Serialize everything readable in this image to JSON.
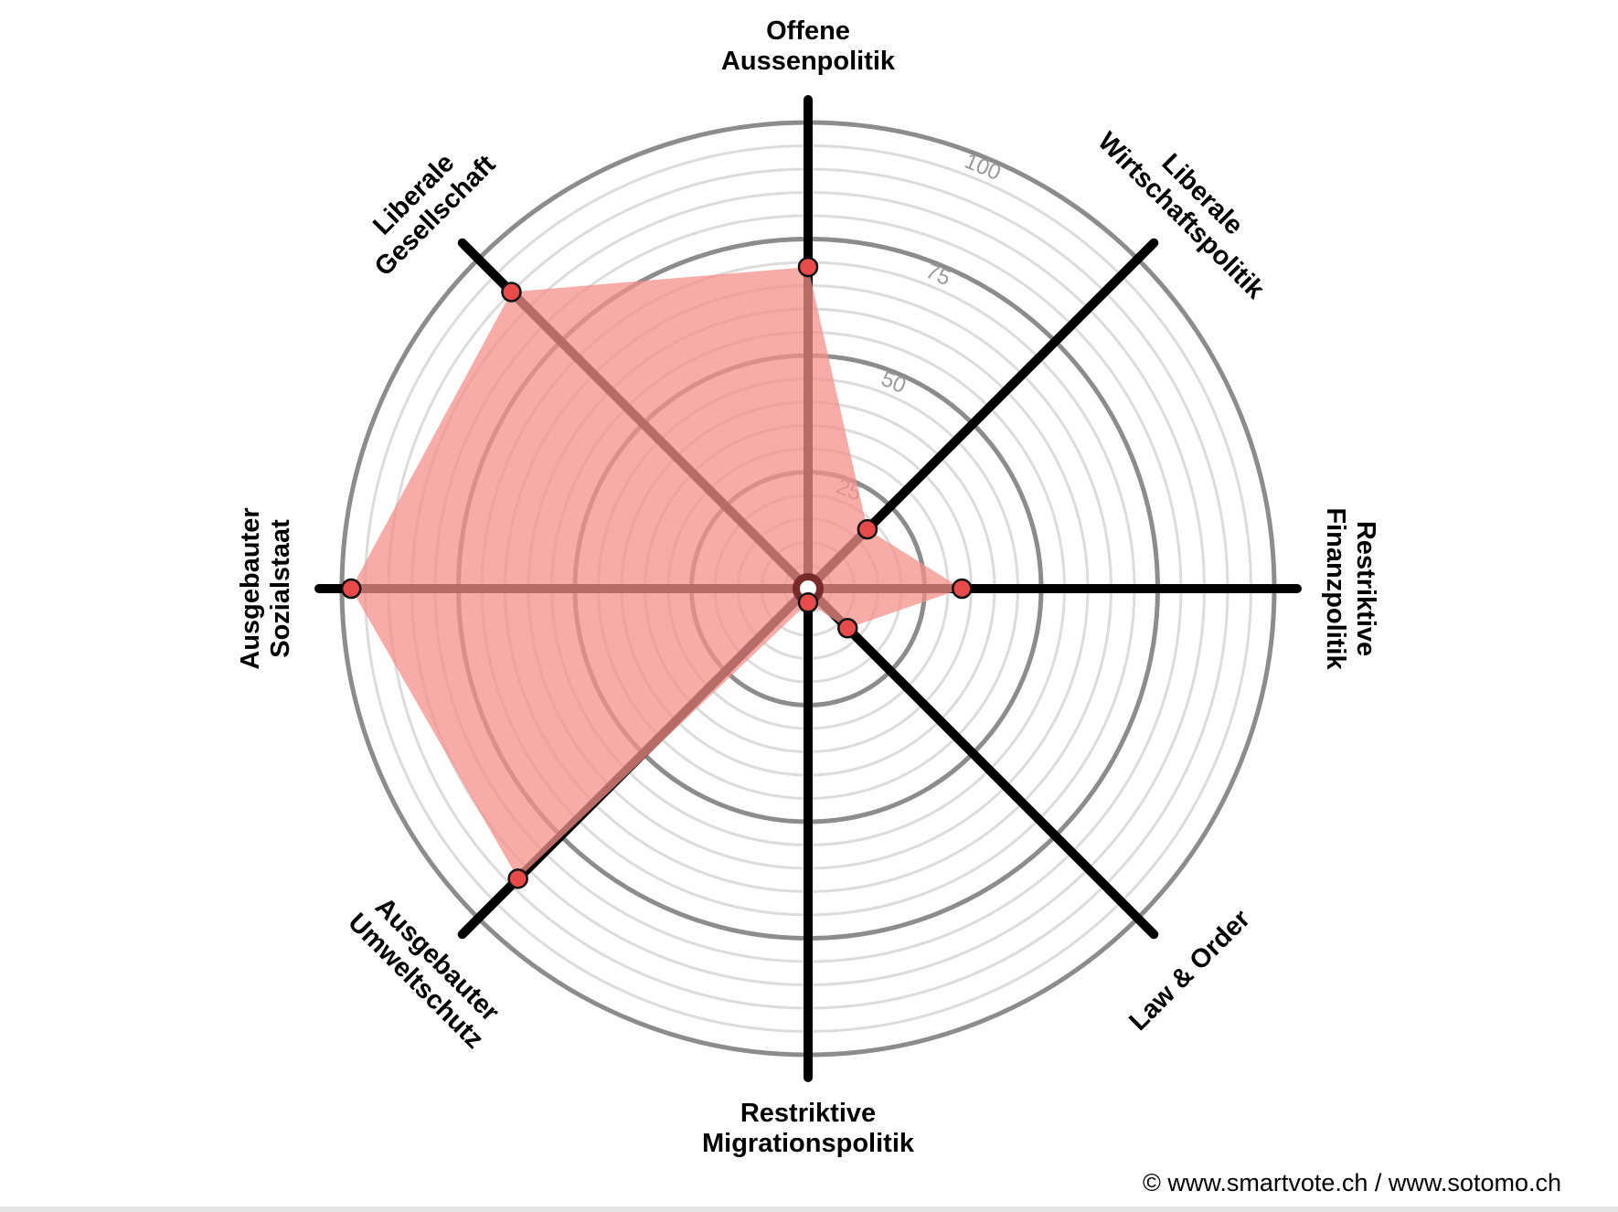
{
  "chart_data": {
    "type": "radar",
    "axes": [
      "Offene Aussenpolitik",
      "Liberale Wirtschaftspolitik",
      "Restriktive Finanzpolitik",
      "Law & Order",
      "Restriktive Migrationspolitik",
      "Ausgebauter Umweltschutz",
      "Ausgebauter Sozialstaat",
      "Liberale Gesellschaft"
    ],
    "axis_label_lines": [
      [
        "Offene",
        "Aussenpolitik"
      ],
      [
        "Liberale",
        "Wirtschaftspolitik"
      ],
      [
        "Restriktive",
        "Finanzpolitik"
      ],
      [
        "Law & Order"
      ],
      [
        "Restriktive",
        "Migrationspolitik"
      ],
      [
        "Ausgebauter",
        "Umweltschutz"
      ],
      [
        "Ausgebauter",
        "Sozialstaat"
      ],
      [
        "Liberale",
        "Gesellschaft"
      ]
    ],
    "series": [
      {
        "values": [
          69,
          18,
          33,
          12,
          3,
          88,
          98,
          90
        ]
      }
    ],
    "range": [
      0,
      100
    ],
    "ring_labels": [
      "25",
      "50",
      "75",
      "100"
    ],
    "ring_values": [
      25,
      50,
      75,
      100
    ],
    "minor_step": 5,
    "colors": {
      "fill": "#f4908a",
      "fill_opacity": 0.75,
      "marker": "#e94b4b",
      "axis": "#000000",
      "major_ring": "#8c8c8c",
      "minor_ring": "#dcdcdc"
    }
  },
  "footer": {
    "copyright": "© www.smartvote.ch / www.sotomo.ch"
  }
}
